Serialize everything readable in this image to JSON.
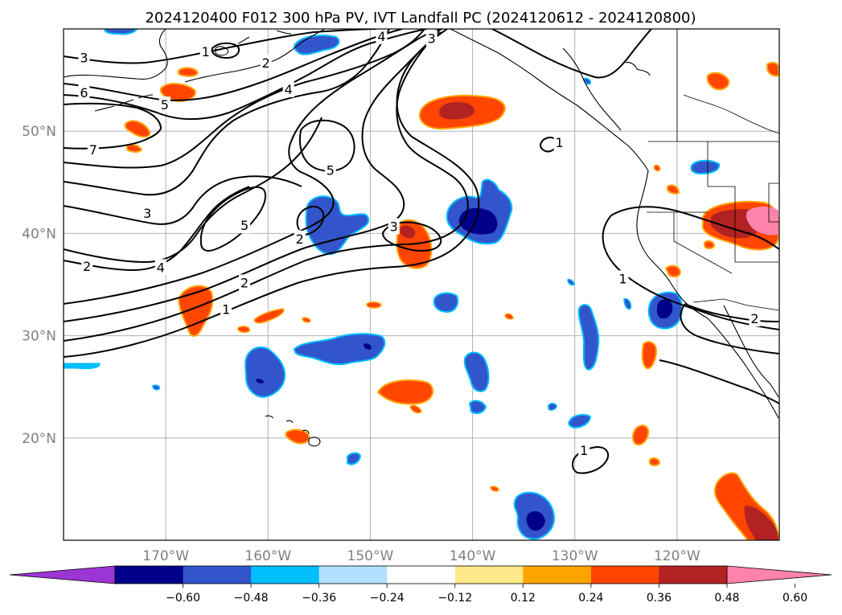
{
  "chart_data": {
    "type": "map-contour",
    "title": "2024120400 F012 300 hPa PV, IVT Landfall PC (2024120612 - 2024120800)",
    "lon_range": [
      -180,
      -110
    ],
    "lat_range": [
      10,
      60
    ],
    "lon_ticks": [
      -170,
      -160,
      -150,
      -140,
      -130,
      -120
    ],
    "lon_tick_labels": [
      "170°W",
      "160°W",
      "150°W",
      "140°W",
      "130°W",
      "120°W"
    ],
    "lat_ticks": [
      20,
      30,
      40,
      50
    ],
    "lat_tick_labels": [
      "20°N",
      "30°N",
      "40°N",
      "50°N"
    ],
    "grid": true,
    "contour_variable": "300 hPa PV",
    "contour_levels": [
      1,
      2,
      3,
      4,
      5,
      6,
      7
    ],
    "fill_variable": "IVT Landfall PC",
    "colorbar": {
      "extend": "both",
      "tick_values": [
        -0.6,
        -0.48,
        -0.36,
        -0.24,
        -0.12,
        0.12,
        0.24,
        0.36,
        0.48,
        0.6
      ],
      "tick_labels": [
        "−0.60",
        "−0.48",
        "−0.36",
        "−0.24",
        "−0.12",
        "0.12",
        "0.24",
        "0.36",
        "0.48",
        "0.60"
      ],
      "colors": [
        "#9b35d6",
        "#00008b",
        "#3355cc",
        "#00bfff",
        "#b0e2ff",
        "#ffffff",
        "#ffe88a",
        "#ffa500",
        "#ff4500",
        "#b22222",
        "#ff82ab"
      ]
    },
    "contour_labels": [
      {
        "text": "3",
        "lon": -178.0,
        "lat": 57.2
      },
      {
        "text": "6",
        "lon": -178.0,
        "lat": 53.8
      },
      {
        "text": "5",
        "lon": -170.1,
        "lat": 52.6
      },
      {
        "text": "7",
        "lon": -177.1,
        "lat": 48.2
      },
      {
        "text": "3",
        "lon": -171.8,
        "lat": 42.0
      },
      {
        "text": "2",
        "lon": -177.7,
        "lat": 36.8
      },
      {
        "text": "4",
        "lon": -170.5,
        "lat": 36.7
      },
      {
        "text": "1",
        "lon": -166.1,
        "lat": 57.8
      },
      {
        "text": "2",
        "lon": -160.2,
        "lat": 56.7
      },
      {
        "text": "4",
        "lon": -158.0,
        "lat": 54.1
      },
      {
        "text": "4",
        "lon": -148.9,
        "lat": 59.3
      },
      {
        "text": "3",
        "lon": -144.0,
        "lat": 59.1
      },
      {
        "text": "5",
        "lon": -153.9,
        "lat": 46.2
      },
      {
        "text": "5",
        "lon": -162.3,
        "lat": 40.8
      },
      {
        "text": "2",
        "lon": -156.9,
        "lat": 39.5
      },
      {
        "text": "3",
        "lon": -147.7,
        "lat": 40.7
      },
      {
        "text": "2",
        "lon": -162.3,
        "lat": 35.2
      },
      {
        "text": "1",
        "lon": -164.1,
        "lat": 32.6
      },
      {
        "text": "1",
        "lon": -131.5,
        "lat": 48.9
      },
      {
        "text": "1",
        "lon": -125.3,
        "lat": 35.6
      },
      {
        "text": "2",
        "lon": -112.4,
        "lat": 31.7
      },
      {
        "text": "1",
        "lon": -129.1,
        "lat": 18.8
      }
    ]
  }
}
